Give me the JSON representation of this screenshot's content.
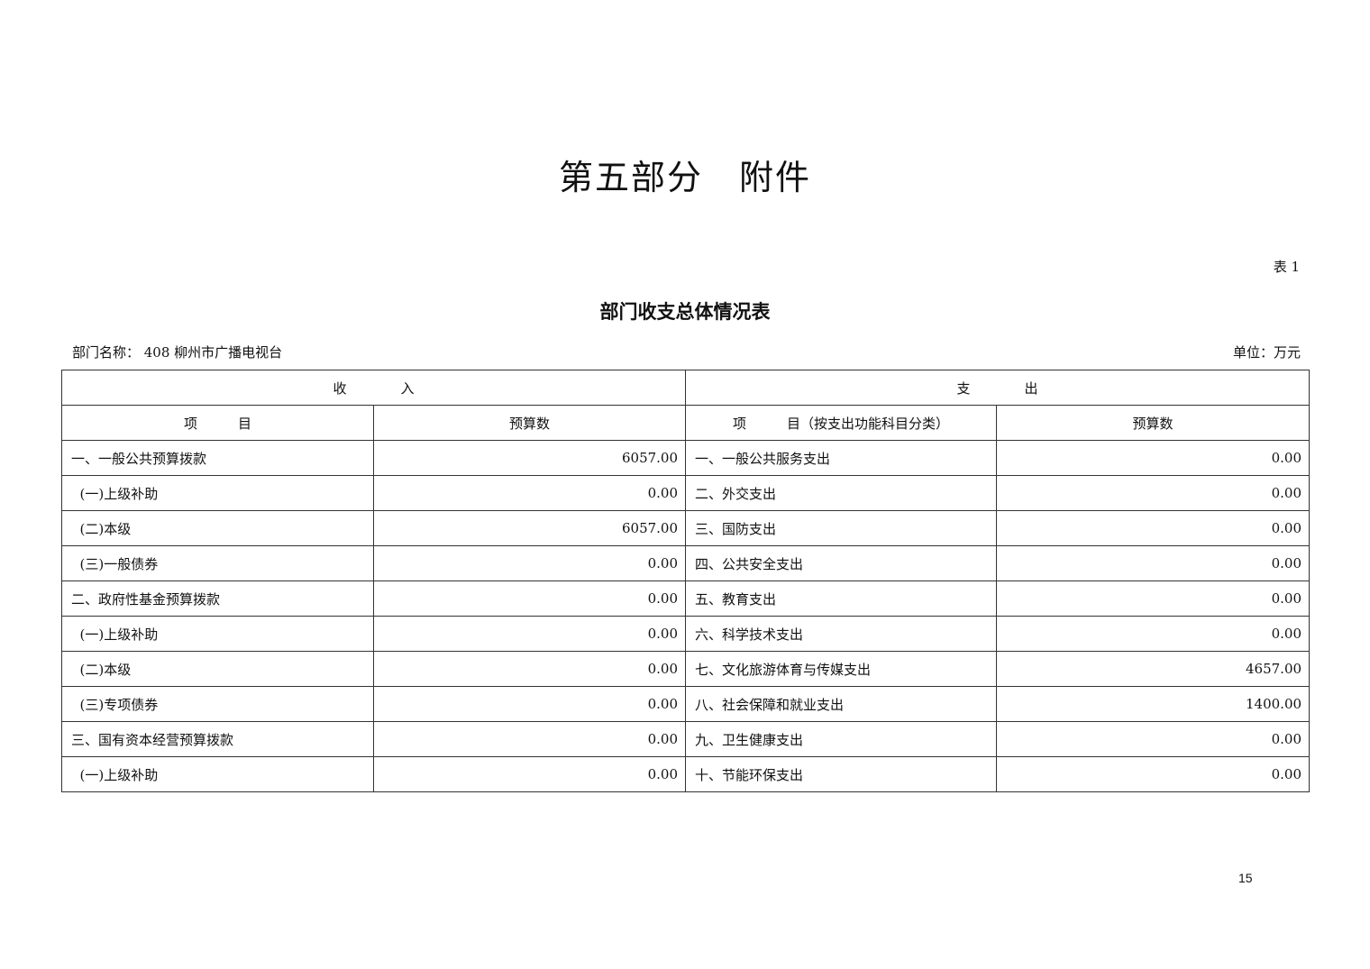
{
  "part_title": "第五部分　附件",
  "table_no": "表 1",
  "table_title": "部门收支总体情况表",
  "dept_label": "部门名称：  408 柳州市广播电视台",
  "unit_label": "单位：万元",
  "header": {
    "income": "收　　　　入",
    "expense": "支　　　　出",
    "income_item": "项　　　目",
    "income_amount": "预算数",
    "expense_item": "项　　　目（按支出功能科目分类）",
    "expense_amount": "预算数"
  },
  "rows": [
    {
      "income_item": "一、一般公共预算拨款",
      "income_amount": "6057.00",
      "expense_item": "一、一般公共服务支出",
      "expense_amount": "0.00"
    },
    {
      "income_item": "  (一)上级补助",
      "income_amount": "0.00",
      "expense_item": "二、外交支出",
      "expense_amount": "0.00"
    },
    {
      "income_item": "  (二)本级",
      "income_amount": "6057.00",
      "expense_item": "三、国防支出",
      "expense_amount": "0.00"
    },
    {
      "income_item": "  (三)一般债券",
      "income_amount": "0.00",
      "expense_item": "四、公共安全支出",
      "expense_amount": "0.00"
    },
    {
      "income_item": "二、政府性基金预算拨款",
      "income_amount": "0.00",
      "expense_item": "五、教育支出",
      "expense_amount": "0.00"
    },
    {
      "income_item": "  (一)上级补助",
      "income_amount": "0.00",
      "expense_item": "六、科学技术支出",
      "expense_amount": "0.00"
    },
    {
      "income_item": "  (二)本级",
      "income_amount": "0.00",
      "expense_item": "七、文化旅游体育与传媒支出",
      "expense_amount": "4657.00"
    },
    {
      "income_item": "  (三)专项债券",
      "income_amount": "0.00",
      "expense_item": "八、社会保障和就业支出",
      "expense_amount": "1400.00"
    },
    {
      "income_item": "三、国有资本经营预算拨款",
      "income_amount": "0.00",
      "expense_item": "九、卫生健康支出",
      "expense_amount": "0.00"
    },
    {
      "income_item": "  (一)上级补助",
      "income_amount": "0.00",
      "expense_item": "十、节能环保支出",
      "expense_amount": "0.00"
    }
  ],
  "page_number": "15"
}
